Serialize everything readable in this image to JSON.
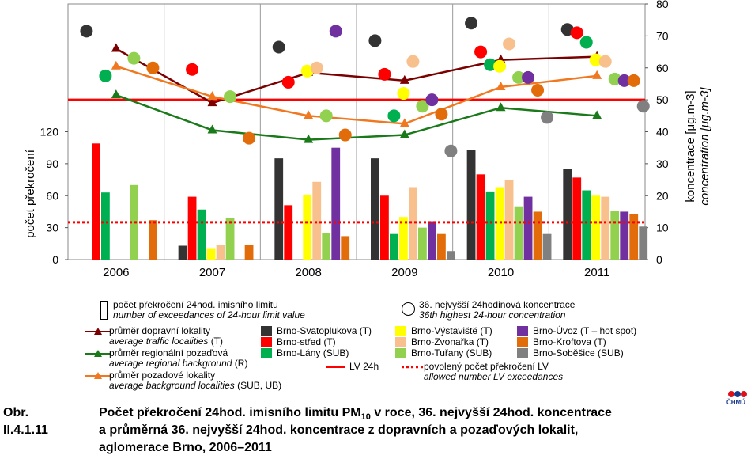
{
  "chart_data": {
    "type": "bar",
    "categories": [
      "2006",
      "2007",
      "2008",
      "2009",
      "2010",
      "2011"
    ],
    "left_axis": {
      "label": "počet překročení",
      "ticks": [
        0,
        30,
        60,
        90,
        120
      ],
      "ylim": [
        0,
        240
      ]
    },
    "right_axis": {
      "label": "koncentrace [μg.m-3]",
      "label_en": "concentration [μg.m-3]",
      "ticks": [
        0,
        10,
        20,
        30,
        40,
        50,
        60,
        70,
        80
      ],
      "ylim": [
        0,
        80
      ]
    },
    "bar_series": [
      {
        "name": "Brno-Svatoplukova (T)",
        "color": "#333333",
        "values": [
          null,
          13,
          95,
          95,
          103,
          85
        ]
      },
      {
        "name": "Brno-střed (T)",
        "color": "#ff0000",
        "values": [
          109,
          59,
          51,
          60,
          80,
          77
        ]
      },
      {
        "name": "Brno-Lány (SUB)",
        "color": "#00b050",
        "values": [
          63,
          47,
          null,
          24,
          64,
          65
        ]
      },
      {
        "name": "Brno-Výstaviště (T)",
        "color": "#ffff00",
        "values": [
          null,
          10,
          61,
          40,
          68,
          60
        ]
      },
      {
        "name": "Brno-Zvonařka (T)",
        "color": "#f8c08c",
        "values": [
          null,
          14,
          73,
          68,
          75,
          59
        ]
      },
      {
        "name": "Brno-Tuřany (SUB)",
        "color": "#92d050",
        "values": [
          70,
          39,
          25,
          30,
          50,
          46
        ]
      },
      {
        "name": "Brno-Úvoz (T – hot spot)",
        "color": "#7030a0",
        "values": [
          null,
          null,
          105,
          36,
          59,
          45
        ]
      },
      {
        "name": "Brno-Kroftova (T)",
        "color": "#e36c0a",
        "values": [
          37,
          14,
          22,
          24,
          45,
          43
        ]
      },
      {
        "name": "Brno-Soběšice (SUB)",
        "color": "#808080",
        "values": [
          null,
          null,
          null,
          8,
          24,
          31
        ]
      }
    ],
    "dot_values_ugm3": [
      [
        71.5,
        null,
        57.5,
        null,
        null,
        63,
        null,
        60,
        null
      ],
      [
        null,
        59.5,
        null,
        null,
        null,
        51,
        null,
        38,
        null
      ],
      [
        66.5,
        55.5,
        null,
        59,
        60,
        45,
        71.5,
        39,
        null
      ],
      [
        68.5,
        58,
        45,
        52,
        62,
        48,
        50,
        45.5,
        34
      ],
      [
        74,
        65,
        61,
        60.5,
        67.5,
        57,
        57,
        53,
        44.5
      ],
      [
        72,
        71,
        68,
        62.5,
        62,
        56.5,
        56,
        56,
        48
      ]
    ],
    "line_series": [
      {
        "name": "průměr dopravní lokality",
        "name_en": "average traffic localities (T)",
        "color": "#7b0000",
        "marker": "▲",
        "values": [
          66,
          49,
          58.5,
          56,
          62.5,
          63.5
        ]
      },
      {
        "name": "průměr regionální pozaďová",
        "name_en": "average regional background (R)",
        "color": "#1a7a1a",
        "marker": "▲",
        "values": [
          51.5,
          40.5,
          37.5,
          39,
          47.5,
          45
        ]
      },
      {
        "name": "průměr pozaďové lokality",
        "name_en": "average background localities (SUB, UB)",
        "color": "#f07820",
        "marker": "▲",
        "values": [
          60.5,
          51,
          45,
          42.5,
          54,
          57.5
        ]
      }
    ],
    "limit_line": {
      "name": "LV 24h",
      "color": "#ff0000",
      "value_ugm3": 50
    },
    "allowed_exceedances": {
      "name": "povolený počet překročení LV",
      "name_en": "allowed number LV exceedances",
      "color": "#ff0000",
      "value": 35
    }
  },
  "legend_top": {
    "bars_cs": "počet překročení 24hod. imisního limitu",
    "bars_en": "number of exceedances of 24-hour limit value",
    "dots_cs": "36. nejvyšší 24hodinová koncentrace",
    "dots_en": "36th highest 24-hour concentration"
  },
  "legend_lines": [
    {
      "cs": "průměr dopravní lokality",
      "en": "average traffic localities",
      "suffix": " (T)"
    },
    {
      "cs": "průměr regionální pozaďová",
      "en": "average regional background",
      "suffix": " (R)"
    },
    {
      "cs": "průměr pozaďové lokality",
      "en": "average background localities",
      "suffix": " (SUB, UB)"
    }
  ],
  "legend_limit": {
    "lv_label": "LV 24h",
    "allowed_cs": "povolený počet překročení LV",
    "allowed_en": "allowed number LV exceedances"
  },
  "logo_text": "ČHMÚ",
  "caption": {
    "label": "Obr. II.4.1.11",
    "line1_pre": "Počet překročení 24hod. imisního limitu PM",
    "line1_sub": "10",
    "line1_post": " v roce, 36. nejvyšší 24hod. koncentrace",
    "line2": "a průměrná 36. nejvyšší 24hod. koncentrace z dopravních a pozaďových lokalit,",
    "line3": "aglomerace Brno, 2006–2011"
  },
  "colors": {
    "lv_red": "#ff0000",
    "grid": "#cfcfcf"
  }
}
